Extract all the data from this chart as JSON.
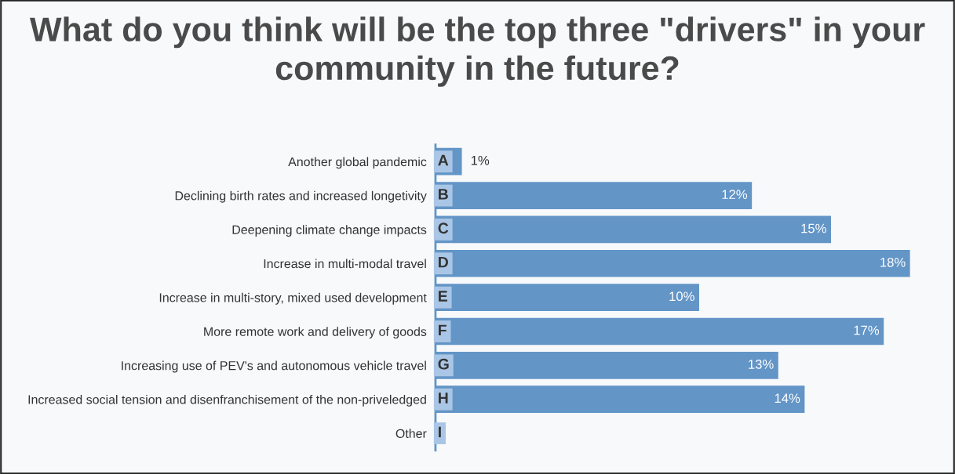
{
  "chart_data": {
    "type": "bar",
    "orientation": "horizontal",
    "title": "What do you think will be the top three \"drivers\" in your community in the future?",
    "categories": [
      "Another global pandemic",
      "Declining birth rates and increased longetivity",
      "Deepening climate change impacts",
      "Increase in multi-modal travel",
      "Increase in multi-story, mixed used development",
      "More remote work and delivery of goods",
      "Increasing use of PEV's and autonomous vehicle travel",
      "Increased social tension and disenfranchisement of the non-priveledged",
      "Other"
    ],
    "values": [
      1,
      12,
      15,
      18,
      10,
      17,
      13,
      14,
      0
    ],
    "value_labels": [
      "1%",
      "12%",
      "15%",
      "18%",
      "10%",
      "17%",
      "13%",
      "14%",
      null
    ],
    "color": "#6395c7",
    "xlim": [
      0,
      18
    ],
    "annotations": [
      {
        "text": "A",
        "y": "Another global pandemic"
      },
      {
        "text": "B",
        "y": "Declining birth rates and increased longetivity"
      },
      {
        "text": "C",
        "y": "Deepening climate change impacts"
      },
      {
        "text": "D",
        "y": "Increase in multi-modal travel"
      },
      {
        "text": "E",
        "y": "Increase in multi-story, mixed used development"
      },
      {
        "text": "F",
        "y": "More remote work and delivery of goods"
      },
      {
        "text": "G",
        "y": "Increasing use of PEV's and autonomous vehicle travel"
      },
      {
        "text": "H",
        "y": "Increased social tension and disenfranchisement of the non-priveledged"
      },
      {
        "text": "I",
        "y": "Other"
      }
    ],
    "tick_labels": "y",
    "grid": false,
    "legend": false
  }
}
